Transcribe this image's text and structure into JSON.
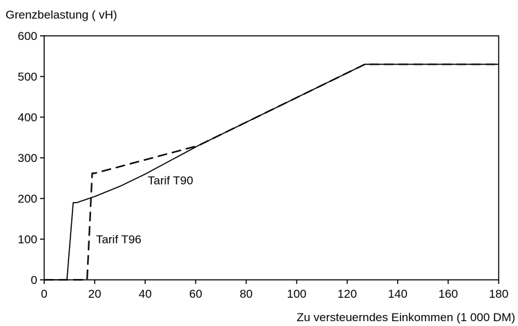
{
  "chart_data": {
    "type": "line",
    "title": "",
    "ylabel": "Grenzbelastung ( vH)",
    "xlabel": "Zu versteuerndes Einkommen (1 000 DM)",
    "xlim": [
      0,
      180
    ],
    "ylim": [
      0,
      600
    ],
    "xticks": [
      0,
      20,
      40,
      60,
      80,
      100,
      120,
      140,
      160,
      180
    ],
    "yticks": [
      0,
      100,
      200,
      300,
      400,
      500,
      600
    ],
    "grid": false,
    "series": [
      {
        "name": "Tarif T90",
        "style": "solid",
        "x": [
          0,
          9,
          11.5,
          13,
          20,
          30,
          40,
          61,
          127,
          180
        ],
        "y": [
          0,
          0,
          190,
          190,
          205,
          230,
          260,
          330,
          530,
          530
        ]
      },
      {
        "name": "Tarif T96",
        "style": "dashed",
        "x": [
          0,
          17,
          19,
          20,
          61,
          127,
          180
        ],
        "y": [
          0,
          0,
          262,
          262,
          330,
          530,
          530
        ]
      }
    ],
    "annotations": [
      {
        "text": "Tarif T90",
        "x": 41,
        "y": 245
      },
      {
        "text": "Tarif T96",
        "x": 20.5,
        "y": 100
      }
    ]
  }
}
